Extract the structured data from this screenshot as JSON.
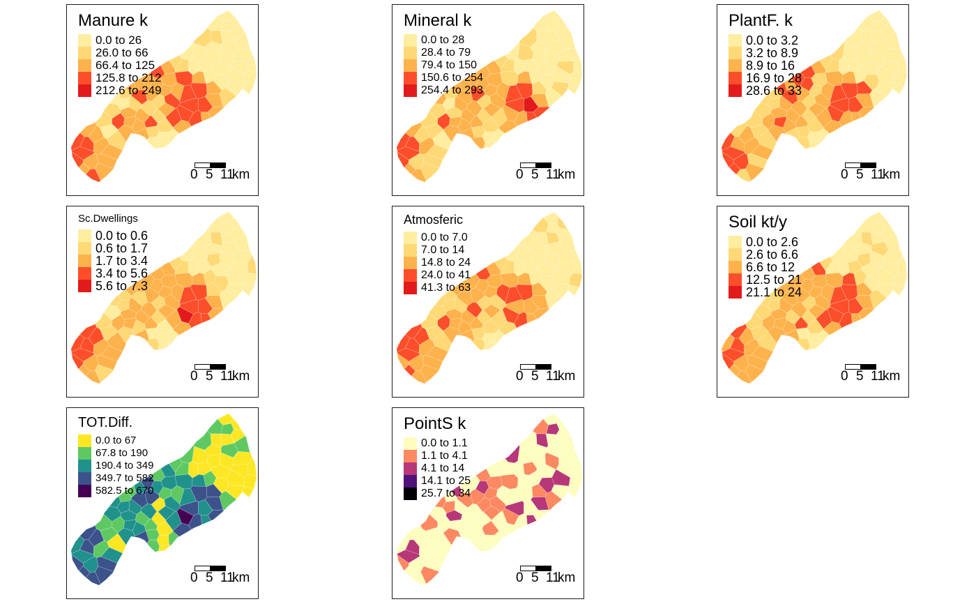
{
  "colors": {
    "ylorrd": [
      "#ffeda0",
      "#fed976",
      "#feb24c",
      "#fd8d3c",
      "#fc4e2a",
      "#e31a1c"
    ],
    "viridis": [
      "#fde725",
      "#5ec962",
      "#21918c",
      "#3b528b",
      "#440154"
    ],
    "magma": [
      "#fcfdbf",
      "#fc8961",
      "#b73779",
      "#51127c",
      "#000004"
    ]
  },
  "scale_bar": {
    "tick_0": "0",
    "tick_1": "5",
    "tick_2": "11",
    "unit": "km"
  },
  "panels": [
    {
      "title": "Manure k",
      "classes": [
        {
          "label": "0.0 to 26",
          "color": "#ffeda0"
        },
        {
          "label": "26.0 to 66",
          "color": "#fed976"
        },
        {
          "label": "66.4 to 125",
          "color": "#feb24c"
        },
        {
          "label": "125.8 to 212",
          "color": "#fc4e2a"
        },
        {
          "label": "212.6 to 249",
          "color": "#e31a1c"
        }
      ]
    },
    {
      "title": "Mineral k",
      "classes": [
        {
          "label": "0.0 to 28",
          "color": "#ffeda0"
        },
        {
          "label": "28.4 to 79",
          "color": "#fed976"
        },
        {
          "label": "79.4 to 150",
          "color": "#feb24c"
        },
        {
          "label": "150.6 to 254",
          "color": "#fc4e2a"
        },
        {
          "label": "254.4 to 293",
          "color": "#e31a1c"
        }
      ]
    },
    {
      "title": "PlantF. k",
      "classes": [
        {
          "label": "0.0 to 3.2",
          "color": "#ffeda0"
        },
        {
          "label": "3.2 to 8.9",
          "color": "#fed976"
        },
        {
          "label": "8.9 to 16",
          "color": "#feb24c"
        },
        {
          "label": "16.9 to 28",
          "color": "#fc4e2a"
        },
        {
          "label": "28.6 to 33",
          "color": "#e31a1c"
        }
      ]
    },
    {
      "title": "Sc.Dwellings",
      "classes": [
        {
          "label": "0.0 to 0.6",
          "color": "#ffeda0"
        },
        {
          "label": "0.6 to 1.7",
          "color": "#fed976"
        },
        {
          "label": "1.7 to 3.4",
          "color": "#feb24c"
        },
        {
          "label": "3.4 to 5.6",
          "color": "#fc4e2a"
        },
        {
          "label": "5.6 to 7.3",
          "color": "#e31a1c"
        }
      ]
    },
    {
      "title": "Atmosferic",
      "classes": [
        {
          "label": "0.0 to 7.0",
          "color": "#ffeda0"
        },
        {
          "label": "7.0 to 14",
          "color": "#fed976"
        },
        {
          "label": "14.8 to 24",
          "color": "#feb24c"
        },
        {
          "label": "24.0 to 41",
          "color": "#fc4e2a"
        },
        {
          "label": "41.3 to 63",
          "color": "#e31a1c"
        }
      ]
    },
    {
      "title": "Soil kt/y",
      "classes": [
        {
          "label": "0.0 to 2.6",
          "color": "#ffeda0"
        },
        {
          "label": "2.6 to 6.6",
          "color": "#fed976"
        },
        {
          "label": "6.6 to 12",
          "color": "#feb24c"
        },
        {
          "label": "12.5 to 21",
          "color": "#fc4e2a"
        },
        {
          "label": "21.1 to 24",
          "color": "#e31a1c"
        }
      ]
    },
    {
      "title": "TOT.Diff.",
      "classes": [
        {
          "label": "0.0 to 67",
          "color": "#fde725"
        },
        {
          "label": "67.8 to 190",
          "color": "#5ec962"
        },
        {
          "label": "190.4 to 349",
          "color": "#21918c"
        },
        {
          "label": "349.7 to 582",
          "color": "#3b528b"
        },
        {
          "label": "582.5 to 670",
          "color": "#440154"
        }
      ]
    },
    {
      "title": "PointS k",
      "classes": [
        {
          "label": "0.0 to 1.1",
          "color": "#fcfdbf"
        },
        {
          "label": "1.1 to 4.1",
          "color": "#fc8961"
        },
        {
          "label": "4.1 to 14",
          "color": "#b73779"
        },
        {
          "label": "14.1 to 25",
          "color": "#51127c"
        },
        {
          "label": "25.7 to 34",
          "color": "#000004"
        }
      ]
    }
  ]
}
